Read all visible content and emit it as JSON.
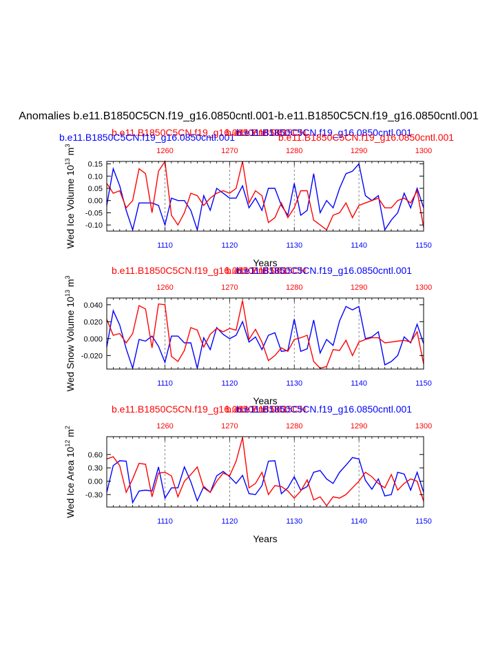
{
  "page_title": "Anomalies b.e11.B1850C5CN.f19_g16.0850cntl.001-b.e11.B1850C5CN.f19_g16.0850cntl.001",
  "colors": {
    "blue": "#0000ff",
    "red": "#ff0000",
    "black": "#000000",
    "grid": "#555555"
  },
  "chart_data": [
    {
      "type": "line",
      "ylabel": "Wed Ice Volume 10^13 m^3",
      "ylabel_parts": {
        "main": "Wed Ice Volume 10",
        "exp1": "13",
        "unit": " m",
        "exp2": "3"
      },
      "xlabel": "Years",
      "top_labels": {
        "left_red": "b.e11.B1850C5CN.f19_g16.0850cntl.001",
        "left_blue": "b.e11.B1850C5CN.f19_g16.0850cntl.001",
        "mid_red": "b.e11.B1850C5CN",
        "right_blue": "b.e11.B1850C5CN.f19_g16.0850cntl.001",
        "right_red": "b.e11.B1850C5CN.f19_g16.0850cntl.001"
      },
      "ylim": [
        -0.125,
        0.16
      ],
      "yticks": [
        -0.1,
        -0.05,
        0.0,
        0.05,
        0.1,
        0.15
      ],
      "yticklabels": [
        "-0.10",
        "-0.05",
        "0.00",
        "0.05",
        "0.10",
        "0.15"
      ],
      "x_bottom": {
        "range": [
          1101,
          1150
        ],
        "ticks": [
          1110,
          1120,
          1130,
          1140,
          1150
        ]
      },
      "x_top": {
        "range": [
          1251,
          1300
        ],
        "ticks": [
          1260,
          1270,
          1280,
          1290,
          1300
        ]
      },
      "series": [
        {
          "name": "b.e11.B1850C5CN.f19_g16.0850cntl.001 (1101-1150)",
          "color": "blue",
          "x": [
            1101,
            1102,
            1103,
            1104,
            1105,
            1106,
            1107,
            1108,
            1109,
            1110,
            1111,
            1112,
            1113,
            1114,
            1115,
            1116,
            1117,
            1118,
            1119,
            1120,
            1121,
            1122,
            1123,
            1124,
            1125,
            1126,
            1127,
            1128,
            1129,
            1130,
            1131,
            1132,
            1133,
            1134,
            1135,
            1136,
            1137,
            1138,
            1139,
            1140,
            1141,
            1142,
            1143,
            1144,
            1145,
            1146,
            1147,
            1148,
            1149,
            1150
          ],
          "values": [
            -0.02,
            0.13,
            0.06,
            -0.04,
            -0.12,
            -0.01,
            -0.01,
            -0.01,
            -0.02,
            -0.1,
            0.01,
            0.0,
            0.0,
            -0.04,
            -0.12,
            0.02,
            -0.04,
            0.05,
            0.03,
            0.01,
            0.01,
            0.06,
            -0.03,
            0.01,
            -0.04,
            0.05,
            0.05,
            -0.02,
            -0.06,
            0.07,
            -0.06,
            -0.04,
            0.11,
            -0.05,
            0.0,
            -0.03,
            0.05,
            0.11,
            0.12,
            0.15,
            0.02,
            0.0,
            0.02,
            -0.12,
            -0.08,
            -0.05,
            0.03,
            -0.03,
            0.05,
            -0.03
          ]
        },
        {
          "name": "b.e11.B1850C5CN.f19_g16.0850cntl.001 (1251-1300)",
          "color": "red",
          "x": [
            1251,
            1252,
            1253,
            1254,
            1255,
            1256,
            1257,
            1258,
            1259,
            1260,
            1261,
            1262,
            1263,
            1264,
            1265,
            1266,
            1267,
            1268,
            1269,
            1270,
            1271,
            1272,
            1273,
            1274,
            1275,
            1276,
            1277,
            1278,
            1279,
            1280,
            1281,
            1282,
            1283,
            1284,
            1285,
            1286,
            1287,
            1288,
            1289,
            1290,
            1291,
            1292,
            1293,
            1294,
            1295,
            1296,
            1297,
            1298,
            1299,
            1300
          ],
          "values": [
            0.07,
            0.03,
            0.04,
            -0.03,
            0.0,
            0.13,
            0.11,
            -0.05,
            0.12,
            0.16,
            -0.06,
            -0.1,
            -0.05,
            0.03,
            0.02,
            -0.02,
            0.01,
            0.03,
            0.04,
            0.03,
            0.05,
            0.16,
            -0.01,
            0.04,
            0.02,
            -0.09,
            -0.07,
            -0.01,
            -0.07,
            -0.03,
            0.04,
            0.04,
            -0.08,
            -0.1,
            -0.12,
            -0.06,
            -0.05,
            -0.01,
            -0.07,
            -0.02,
            -0.01,
            0.0,
            0.01,
            -0.03,
            -0.03,
            0.0,
            0.01,
            -0.01,
            0.04,
            -0.11
          ]
        }
      ]
    },
    {
      "type": "line",
      "ylabel": "Wed Snow Volume 10^13 m^3",
      "ylabel_parts": {
        "main": "Wed Snow Volume 10",
        "exp1": "13",
        "unit": " m",
        "exp2": "3"
      },
      "xlabel": "Years",
      "top_labels": {
        "left_red": "b.e11.B1850C5CN.f19_g16.0850cntl.001",
        "mid_red": "b.e11.B1850C5CN",
        "right_blue": "b.e11.B1850C5CN.f19_g16.0850cntl.001"
      },
      "ylim": [
        -0.036,
        0.048
      ],
      "yticks": [
        -0.02,
        0.0,
        0.02,
        0.04
      ],
      "yticklabels": [
        "-0.020",
        "0.000",
        "0.020",
        "0.040"
      ],
      "x_bottom": {
        "range": [
          1101,
          1150
        ],
        "ticks": [
          1110,
          1120,
          1130,
          1140,
          1150
        ]
      },
      "x_top": {
        "range": [
          1251,
          1300
        ],
        "ticks": [
          1260,
          1270,
          1280,
          1290,
          1300
        ]
      },
      "series": [
        {
          "name": "b.e11.B1850C5CN.f19_g16.0850cntl.001 (1101-1150)",
          "color": "blue",
          "x": [
            1101,
            1102,
            1103,
            1104,
            1105,
            1106,
            1107,
            1108,
            1109,
            1110,
            1111,
            1112,
            1113,
            1114,
            1115,
            1116,
            1117,
            1118,
            1119,
            1120,
            1121,
            1122,
            1123,
            1124,
            1125,
            1126,
            1127,
            1128,
            1129,
            1130,
            1131,
            1132,
            1133,
            1134,
            1135,
            1136,
            1137,
            1138,
            1139,
            1140,
            1141,
            1142,
            1143,
            1144,
            1145,
            1146,
            1147,
            1148,
            1149,
            1150
          ],
          "values": [
            -0.01,
            0.033,
            0.016,
            -0.012,
            -0.035,
            -0.001,
            -0.003,
            0.003,
            -0.009,
            -0.028,
            0.003,
            0.003,
            -0.005,
            -0.005,
            -0.035,
            0.001,
            -0.013,
            0.013,
            0.005,
            0.0,
            0.004,
            0.02,
            -0.004,
            0.002,
            -0.013,
            0.004,
            0.007,
            -0.015,
            -0.014,
            0.023,
            -0.015,
            -0.012,
            0.022,
            -0.017,
            -0.001,
            -0.008,
            0.021,
            0.038,
            0.034,
            0.038,
            0.0,
            0.002,
            0.008,
            -0.031,
            -0.027,
            -0.02,
            0.002,
            -0.005,
            0.017,
            -0.006
          ]
        },
        {
          "name": "b.e11.B1850C5CN.f19_g16.0850cntl.001 (1251-1300)",
          "color": "red",
          "x": [
            1251,
            1252,
            1253,
            1254,
            1255,
            1256,
            1257,
            1258,
            1259,
            1260,
            1261,
            1262,
            1263,
            1264,
            1265,
            1266,
            1267,
            1268,
            1269,
            1270,
            1271,
            1272,
            1273,
            1274,
            1275,
            1276,
            1277,
            1278,
            1279,
            1280,
            1281,
            1282,
            1283,
            1284,
            1285,
            1286,
            1287,
            1288,
            1289,
            1290,
            1291,
            1292,
            1293,
            1294,
            1295,
            1296,
            1297,
            1298,
            1299,
            1300
          ],
          "values": [
            0.023,
            0.004,
            0.006,
            -0.005,
            0.006,
            0.039,
            0.035,
            -0.011,
            0.041,
            0.04,
            -0.021,
            -0.027,
            -0.014,
            0.013,
            0.01,
            -0.01,
            0.005,
            0.012,
            0.008,
            0.012,
            0.01,
            0.045,
            -0.001,
            0.011,
            -0.004,
            -0.026,
            -0.02,
            -0.011,
            -0.015,
            -0.001,
            0.001,
            0.004,
            -0.027,
            -0.035,
            -0.033,
            -0.013,
            -0.014,
            -0.002,
            -0.02,
            -0.004,
            -0.001,
            0.001,
            0.001,
            -0.005,
            -0.004,
            -0.003,
            -0.002,
            -0.004,
            0.008,
            -0.03
          ]
        }
      ]
    },
    {
      "type": "line",
      "ylabel": "Wed Ice Area 10^12 m^2",
      "ylabel_parts": {
        "main": "Wed Ice Area 10",
        "exp1": "12",
        "unit": " m",
        "exp2": "2"
      },
      "xlabel": "Years",
      "top_labels": {
        "left_red": "b.e11.B1850C5CN.f19_g16.0850cntl.001",
        "mid_red": "b.e11.B1850C5CN",
        "right_blue": "b.e11.B1850C5CN.f19_g16.0850cntl.001"
      },
      "ylim": [
        -0.58,
        1.0
      ],
      "yticks": [
        -0.3,
        0.0,
        0.3,
        0.6
      ],
      "yticklabels": [
        "-0.30",
        "0.00",
        "0.30",
        "0.60"
      ],
      "x_bottom": {
        "range": [
          1101,
          1150
        ],
        "ticks": [
          1110,
          1120,
          1130,
          1140,
          1150
        ]
      },
      "x_top": {
        "range": [
          1251,
          1300
        ],
        "ticks": [
          1260,
          1270,
          1280,
          1290,
          1300
        ]
      },
      "series": [
        {
          "name": "b.e11.B1850C5CN.f19_g16.0850cntl.001 (1101-1150)",
          "color": "blue",
          "x": [
            1101,
            1102,
            1103,
            1104,
            1105,
            1106,
            1107,
            1108,
            1109,
            1110,
            1111,
            1112,
            1113,
            1114,
            1115,
            1116,
            1117,
            1118,
            1119,
            1120,
            1121,
            1122,
            1123,
            1124,
            1125,
            1126,
            1127,
            1128,
            1129,
            1130,
            1131,
            1132,
            1133,
            1134,
            1135,
            1136,
            1137,
            1138,
            1139,
            1140,
            1141,
            1142,
            1143,
            1144,
            1145,
            1146,
            1147,
            1148,
            1149,
            1150
          ],
          "values": [
            -0.25,
            0.35,
            0.46,
            0.45,
            -0.48,
            -0.22,
            -0.2,
            -0.22,
            0.32,
            -0.38,
            -0.15,
            -0.15,
            0.32,
            -0.01,
            -0.44,
            -0.12,
            -0.25,
            0.12,
            0.22,
            0.1,
            -0.05,
            0.13,
            -0.28,
            -0.3,
            -0.1,
            0.45,
            0.46,
            -0.28,
            -0.15,
            0.1,
            -0.2,
            -0.12,
            0.2,
            0.24,
            0.05,
            -0.05,
            0.2,
            0.36,
            0.53,
            0.5,
            0.02,
            -0.18,
            0.05,
            -0.33,
            -0.3,
            0.2,
            0.16,
            -0.2,
            0.2,
            -0.25
          ]
        },
        {
          "name": "b.e11.B1850C5CN.f19_g16.0850cntl.001 (1251-1300)",
          "color": "red",
          "x": [
            1251,
            1252,
            1253,
            1254,
            1255,
            1256,
            1257,
            1258,
            1259,
            1260,
            1261,
            1262,
            1263,
            1264,
            1265,
            1266,
            1267,
            1268,
            1269,
            1270,
            1271,
            1272,
            1273,
            1274,
            1275,
            1276,
            1277,
            1278,
            1279,
            1280,
            1281,
            1282,
            1283,
            1284,
            1285,
            1286,
            1287,
            1288,
            1289,
            1290,
            1291,
            1292,
            1293,
            1294,
            1295,
            1296,
            1297,
            1298,
            1299,
            1300
          ],
          "values": [
            0.5,
            0.55,
            0.35,
            -0.25,
            0.05,
            0.4,
            0.38,
            -0.35,
            0.18,
            0.2,
            0.12,
            -0.35,
            0.0,
            0.15,
            0.32,
            -0.15,
            -0.25,
            0.0,
            0.18,
            0.12,
            0.45,
            0.98,
            -0.15,
            -0.05,
            0.2,
            -0.3,
            -0.1,
            -0.12,
            -0.22,
            -0.38,
            -0.22,
            0.03,
            -0.42,
            -0.35,
            -0.55,
            -0.35,
            -0.38,
            -0.3,
            -0.15,
            0.0,
            0.2,
            0.1,
            -0.05,
            -0.15,
            0.15,
            -0.2,
            -0.05,
            0.05,
            0.0,
            -0.45
          ]
        }
      ]
    }
  ]
}
